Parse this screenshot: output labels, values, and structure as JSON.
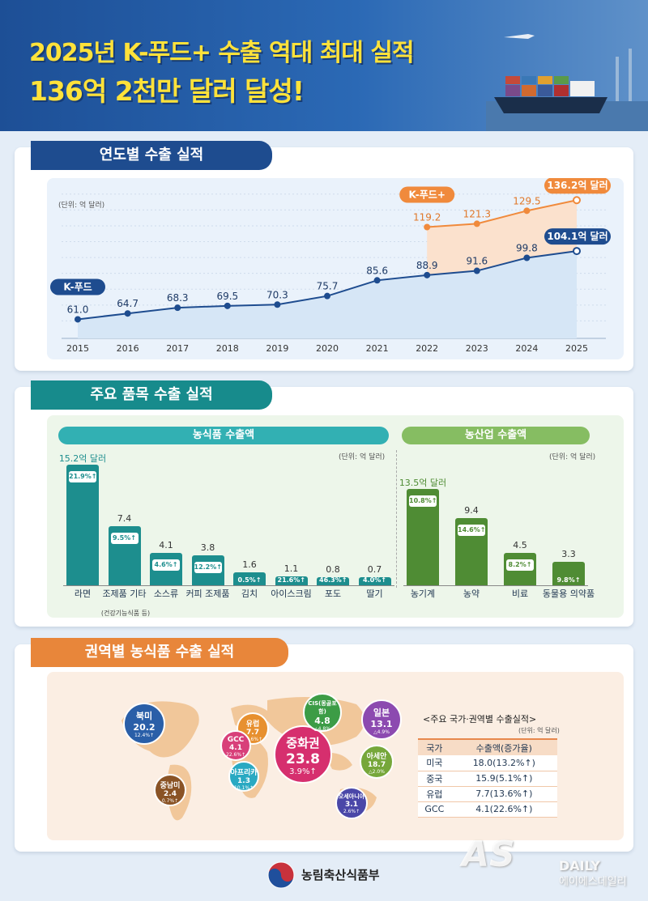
{
  "header": {
    "title_line1": "2025년 K-푸드+ 수출 역대 최대 실적",
    "title_line2": "136억 2천만 달러 달성!"
  },
  "section1": {
    "tab": "연도별 수출 실적",
    "unit": "(단위: 억 달러)",
    "kfood_label": "K-푸드",
    "kfoodplus_label": "K-푸드+",
    "kfood_end_label": "104.1억 달러",
    "kfoodplus_end_label": "136.2억 달러"
  },
  "section2": {
    "tab": "주요 품목 수출 실적",
    "food_header": "농식품 수출액",
    "agri_header": "농산업 수출액",
    "unit_food": "(단위: 억 달러)",
    "unit_agri": "(단위: 억 달러)",
    "food_top_value": "15.2억 달러",
    "agri_top_value": "13.5억 달러",
    "food_note": "(건강기능식품 등)"
  },
  "section3": {
    "tab": "권역별 농식품 수출 실적",
    "table_title": "<주요 국가·권역별 수출실적>",
    "table_unit": "(단위: 억 달러)",
    "table_headers": [
      "국가",
      "수출액(증가율)"
    ],
    "table_rows": [
      [
        "미국",
        "18.0(13.2%↑)"
      ],
      [
        "중국",
        "15.9(5.1%↑)"
      ],
      [
        "유럽",
        "7.7(13.6%↑)"
      ],
      [
        "GCC",
        "4.1(22.6%↑)"
      ]
    ],
    "regions": [
      {
        "name": "북미",
        "value": "20.2",
        "pct": "12.4%↑",
        "color": "#2a5fa8"
      },
      {
        "name": "중남미",
        "value": "2.4",
        "pct": "0.7%↑",
        "color": "#8a5325"
      },
      {
        "name": "유럽",
        "value": "7.7",
        "pct": "13.6%↑",
        "color": "#e7902f"
      },
      {
        "name": "GCC",
        "value": "4.1",
        "pct": "22.6%↑",
        "color": "#d8407a"
      },
      {
        "name": "아프리카",
        "value": "1.3",
        "pct": "10.1%↑",
        "color": "#29a9c2"
      },
      {
        "name": "중화권",
        "value": "23.8",
        "pct": "3.9%↑",
        "color": "#d62f6e"
      },
      {
        "name": "CIS(몽골포함)",
        "value": "4.8",
        "pct": "△4.8%",
        "color": "#3c9c46"
      },
      {
        "name": "일본",
        "value": "13.1",
        "pct": "△4.9%",
        "color": "#8c4ab0"
      },
      {
        "name": "아세안",
        "value": "18.7",
        "pct": "△2.0%",
        "color": "#76a73a"
      },
      {
        "name": "오세아니아",
        "value": "3.1",
        "pct": "2.6%↑",
        "color": "#4a47a8"
      }
    ]
  },
  "footer": {
    "org": "농림축산식품부",
    "watermark_main": "AS",
    "watermark_daily": "DAILY",
    "watermark_sub": "에이에스데일리"
  },
  "chart_data": [
    {
      "type": "line",
      "title": "연도별 수출 실적",
      "unit": "(단위: 억 달러)",
      "x": [
        "2015",
        "2016",
        "2017",
        "2018",
        "2019",
        "2020",
        "2021",
        "2022",
        "2023",
        "2024",
        "2025"
      ],
      "series": [
        {
          "name": "K-푸드",
          "values": [
            61.0,
            64.7,
            68.3,
            69.5,
            70.3,
            75.7,
            85.6,
            88.9,
            91.6,
            99.8,
            104.1
          ],
          "color": "#1e4c8f"
        },
        {
          "name": "K-푸드+",
          "values": [
            null,
            null,
            null,
            null,
            null,
            null,
            null,
            119.2,
            121.3,
            129.5,
            136.2
          ],
          "color": "#f08a3c"
        }
      ],
      "value_labels": [
        "61.0",
        "64.7",
        "68.3",
        "69.5",
        "70.3",
        "75.7",
        "85.6",
        "88.9",
        "91.6",
        "99.8",
        "104.1억 달러"
      ],
      "plus_labels": [
        "119.2",
        "121.3",
        "129.5",
        "136.2억 달러"
      ],
      "grid": true
    },
    {
      "type": "bar",
      "title": "농식품 수출액",
      "categories": [
        "라면",
        "조제품 기타",
        "소스류",
        "커피 조제품",
        "김치",
        "아이스크림",
        "포도",
        "딸기"
      ],
      "values": [
        15.2,
        7.4,
        4.1,
        3.8,
        1.6,
        1.1,
        0.8,
        0.7
      ],
      "value_labels": [
        "15.2억 달러",
        "7.4",
        "4.1",
        "3.8",
        "1.6",
        "1.1",
        "0.8",
        "0.7"
      ],
      "growth": [
        "21.9%↑",
        "9.5%↑",
        "4.6%↑",
        "12.2%↑",
        "0.5%↑",
        "21.6%↑",
        "46.3%↑",
        "4.0%↑"
      ],
      "color": "#1d8e8e"
    },
    {
      "type": "bar",
      "title": "농산업 수출액",
      "categories": [
        "농기계",
        "농약",
        "비료",
        "동물용 의약품"
      ],
      "values": [
        13.5,
        9.4,
        4.5,
        3.3
      ],
      "value_labels": [
        "13.5억 달러",
        "9.4",
        "4.5",
        "3.3"
      ],
      "growth": [
        "10.8%↑",
        "14.6%↑",
        "8.2%↑",
        "9.8%↑"
      ],
      "color": "#4f8c34"
    }
  ]
}
